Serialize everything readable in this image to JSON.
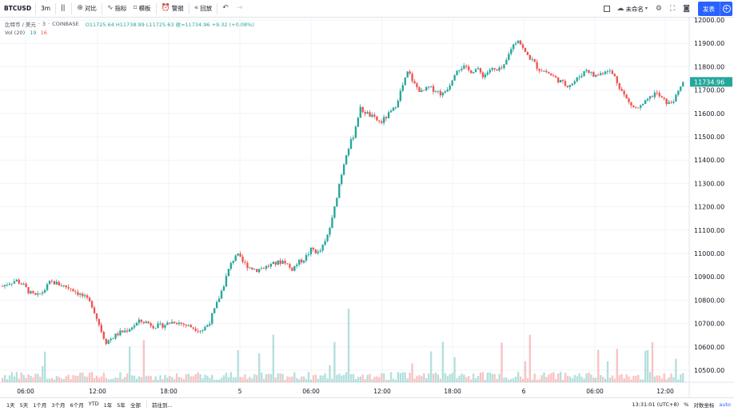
{
  "toolbar": {
    "symbol": "BTCUSD",
    "interval": "3m",
    "compare_label": "对比",
    "indicators_label": "指标",
    "templates_label": "模板",
    "alert_label": "警报",
    "replay_label": "回放",
    "unnamed_label": "未命名",
    "publish_label": "发表"
  },
  "legend": {
    "symbol_desc": "比特币 / 美元",
    "interval": "3",
    "exchange": "COINBASE",
    "ohlc": "O11725.64  H11738.99  L11725.63  收=11734.96  +9.32 (+0.08%)",
    "vol_label": "Vol (20)",
    "vol_value1": "19",
    "vol_value2": "16"
  },
  "bottom": {
    "ranges": [
      "1天",
      "5天",
      "1个月",
      "3个月",
      "6个月",
      "YTD",
      "1年",
      "5年",
      "全部"
    ],
    "goto_label": "前往到...",
    "time": "13:31:01 (UTC+8)",
    "percent": "%",
    "log": "对数坐标",
    "auto": "auto"
  },
  "colors": {
    "up": "#26a69a",
    "down": "#ef5350",
    "accent": "#2962ff",
    "grid": "#f0f3fa"
  },
  "chart_data": {
    "type": "candlestick",
    "title": "",
    "xlabel": "",
    "ylabel": "",
    "ylim": [
      10450,
      12050
    ],
    "y_ticks": [
      10500,
      10600,
      10700,
      10800,
      10900,
      11000,
      11100,
      11200,
      11300,
      11400,
      11500,
      11600,
      11700,
      11800,
      11900,
      12000
    ],
    "x_ticks": [
      "06:00",
      "12:00",
      "18:00",
      "5",
      "06:00",
      "12:00",
      "18:00",
      "6",
      "06:00",
      "12:00"
    ],
    "price_path": [
      [
        0,
        10860
      ],
      [
        1,
        10875
      ],
      [
        2,
        10885
      ],
      [
        3,
        10865
      ],
      [
        4,
        10830
      ],
      [
        5,
        10815
      ],
      [
        6,
        10840
      ],
      [
        7,
        10880
      ],
      [
        8,
        10870
      ],
      [
        9,
        10860
      ],
      [
        10,
        10850
      ],
      [
        11,
        10830
      ],
      [
        12,
        10810
      ],
      [
        13,
        10780
      ],
      [
        14,
        10700
      ],
      [
        15,
        10620
      ],
      [
        16,
        10640
      ],
      [
        17,
        10660
      ],
      [
        18,
        10670
      ],
      [
        19,
        10690
      ],
      [
        20,
        10710
      ],
      [
        21,
        10705
      ],
      [
        22,
        10690
      ],
      [
        23,
        10690
      ],
      [
        24,
        10700
      ],
      [
        25,
        10710
      ],
      [
        26,
        10700
      ],
      [
        27,
        10690
      ],
      [
        28,
        10680
      ],
      [
        29,
        10670
      ],
      [
        30,
        10700
      ],
      [
        31,
        10770
      ],
      [
        32,
        10850
      ],
      [
        33,
        10940
      ],
      [
        34,
        11000
      ],
      [
        35,
        10960
      ],
      [
        36,
        10940
      ],
      [
        37,
        10930
      ],
      [
        38,
        10940
      ],
      [
        39,
        10950
      ],
      [
        40,
        10960
      ],
      [
        41,
        10970
      ],
      [
        42,
        10930
      ],
      [
        43,
        10960
      ],
      [
        44,
        10980
      ],
      [
        45,
        11020
      ],
      [
        46,
        11000
      ],
      [
        47,
        11050
      ],
      [
        48,
        11150
      ],
      [
        49,
        11300
      ],
      [
        50,
        11430
      ],
      [
        51,
        11500
      ],
      [
        52,
        11620
      ],
      [
        53,
        11600
      ],
      [
        54,
        11580
      ],
      [
        55,
        11560
      ],
      [
        56,
        11590
      ],
      [
        57,
        11620
      ],
      [
        58,
        11700
      ],
      [
        59,
        11780
      ],
      [
        60,
        11720
      ],
      [
        61,
        11690
      ],
      [
        62,
        11710
      ],
      [
        63,
        11700
      ],
      [
        64,
        11680
      ],
      [
        65,
        11720
      ],
      [
        66,
        11790
      ],
      [
        67,
        11800
      ],
      [
        68,
        11780
      ],
      [
        69,
        11790
      ],
      [
        70,
        11760
      ],
      [
        71,
        11790
      ],
      [
        72,
        11780
      ],
      [
        73,
        11800
      ],
      [
        74,
        11880
      ],
      [
        75,
        11920
      ],
      [
        76,
        11860
      ],
      [
        77,
        11830
      ],
      [
        78,
        11790
      ],
      [
        79,
        11780
      ],
      [
        80,
        11760
      ],
      [
        81,
        11740
      ],
      [
        82,
        11720
      ],
      [
        83,
        11730
      ],
      [
        84,
        11760
      ],
      [
        85,
        11790
      ],
      [
        86,
        11760
      ],
      [
        87,
        11770
      ],
      [
        88,
        11790
      ],
      [
        89,
        11760
      ],
      [
        90,
        11700
      ],
      [
        91,
        11650
      ],
      [
        92,
        11620
      ],
      [
        93,
        11630
      ],
      [
        94,
        11660
      ],
      [
        95,
        11690
      ],
      [
        96,
        11660
      ],
      [
        97,
        11640
      ],
      [
        98,
        11670
      ],
      [
        99,
        11735
      ]
    ]
  }
}
